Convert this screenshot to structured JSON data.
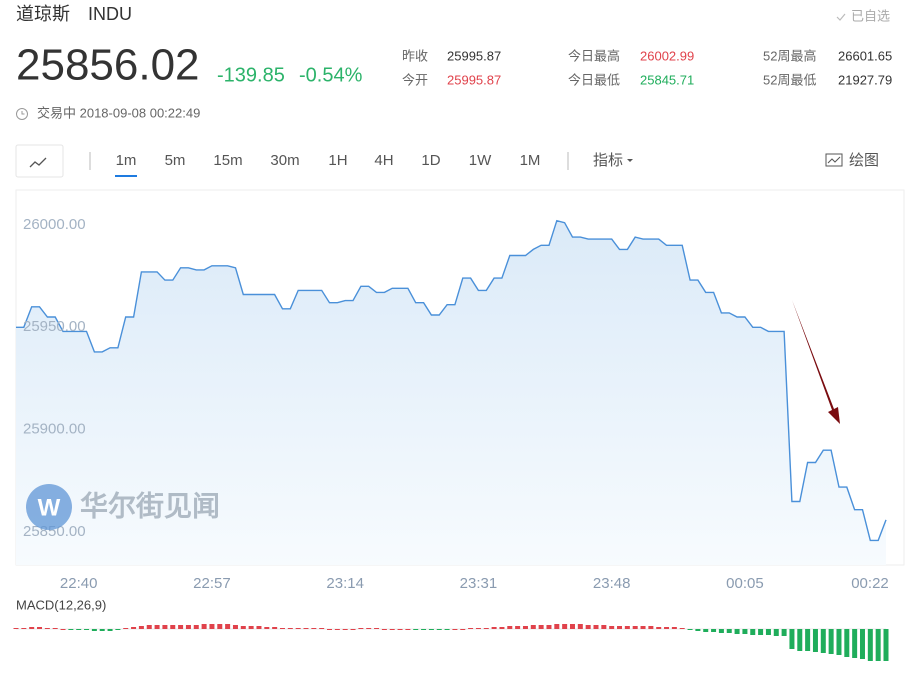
{
  "header": {
    "name": "道琼斯",
    "code": "INDU",
    "watch": "已自选",
    "price": "25856.02",
    "change": "-139.85",
    "change_pct": "-0.54%",
    "status": "交易中 2018-09-08 00:22:49",
    "stats": [
      {
        "label": "昨收",
        "value": "25995.87",
        "color": "#333333"
      },
      {
        "label": "今开",
        "value": "25995.87",
        "color": "#e0424b"
      },
      {
        "label": "今日最高",
        "value": "26002.99",
        "color": "#e0424b"
      },
      {
        "label": "今日最低",
        "value": "25845.71",
        "color": "#1fad5b"
      },
      {
        "label": "52周最高",
        "value": "26601.65",
        "color": "#333333"
      },
      {
        "label": "52周最低",
        "value": "21927.79",
        "color": "#333333"
      }
    ]
  },
  "toolbar": {
    "tabs": [
      "1m",
      "5m",
      "15m",
      "30m",
      "1H",
      "4H",
      "1D",
      "1W",
      "1M"
    ],
    "active": 0,
    "indicator": "指标",
    "draw": "绘图"
  },
  "watermark": "华尔街见闻",
  "chart_data": {
    "type": "line",
    "categories": [
      null,
      null,
      null,
      null,
      null,
      null,
      null,
      null,
      "22:40",
      null,
      null,
      null,
      null,
      null,
      null,
      null,
      null,
      null,
      null,
      null,
      null,
      null,
      null,
      null,
      null,
      "22:57",
      null,
      null,
      null,
      null,
      null,
      null,
      null,
      null,
      null,
      null,
      null,
      null,
      null,
      null,
      null,
      null,
      "23:14",
      null,
      null,
      null,
      null,
      null,
      null,
      null,
      null,
      null,
      null,
      null,
      null,
      null,
      null,
      null,
      null,
      "23:31",
      null,
      null,
      null,
      null,
      null,
      null,
      null,
      null,
      null,
      null,
      null,
      null,
      null,
      null,
      null,
      null,
      "23:48",
      null,
      null,
      null,
      null,
      null,
      null,
      null,
      null,
      null,
      null,
      null,
      null,
      null,
      null,
      null,
      null,
      "00:05",
      null,
      null,
      null,
      null,
      null,
      null,
      null,
      null,
      null,
      null,
      null,
      null,
      null,
      null,
      null,
      null,
      "00:22",
      null
    ],
    "series": [
      {
        "name": "INDU",
        "color": "#4a90d9",
        "values": [
          25950,
          25950,
          25960,
          25960,
          25955,
          25955,
          25948,
          25948,
          25948,
          25948,
          25938,
          25938,
          25940,
          25940,
          25955,
          25955,
          25977,
          25977,
          25977,
          25973,
          25973,
          25979,
          25979,
          25978,
          25978,
          25980,
          25980,
          25980,
          25979,
          25966,
          25966,
          25966,
          25966,
          25966,
          25959,
          25959,
          25968,
          25968,
          25968,
          25968,
          25962,
          25962,
          25963,
          25963,
          25970,
          25970,
          25967,
          25967,
          25969,
          25969,
          25969,
          25962,
          25962,
          25956,
          25956,
          25961,
          25961,
          25974,
          25974,
          25968,
          25968,
          25974,
          25974,
          25985,
          25985,
          25985,
          25988,
          25990,
          25990,
          26002,
          26001,
          25994,
          25994,
          25993,
          25993,
          25993,
          25993,
          25988,
          25988,
          25994,
          25993,
          25993,
          25993,
          25990,
          25990,
          25990,
          25973,
          25973,
          25967,
          25967,
          25957,
          25957,
          25955,
          25955,
          25950,
          25950,
          25948,
          25948,
          25948,
          25865,
          25865,
          25884,
          25884,
          25890,
          25890,
          25872,
          25872,
          25861,
          25861,
          25846,
          25846,
          25856.02
        ]
      }
    ],
    "ylim": [
      25834,
      26016
    ],
    "yticks": [
      {
        "value": 25850,
        "label": "25850.00"
      },
      {
        "value": 25900,
        "label": "25900.00"
      },
      {
        "value": 25950,
        "label": "25950.00"
      },
      {
        "value": 26000,
        "label": "26000.00"
      }
    ],
    "macd": {
      "label": "MACD(12,26,9)",
      "positive_color": "#e0424b",
      "negative_color": "#1fad5b",
      "ylim": [
        -36,
        14
      ],
      "values": [
        1,
        1,
        2,
        2,
        1,
        1,
        0,
        -1,
        -1,
        -1,
        -2,
        -2,
        -2,
        -1,
        1,
        2,
        3,
        4,
        4,
        4,
        4,
        4,
        4,
        4,
        5,
        5,
        5,
        5,
        4,
        3,
        3,
        3,
        2,
        2,
        1,
        1,
        1,
        1,
        1,
        1,
        0,
        0,
        0,
        0,
        1,
        1,
        1,
        0,
        0,
        0,
        0,
        -1,
        -1,
        -1,
        -1,
        -1,
        0,
        0,
        1,
        1,
        1,
        2,
        2,
        3,
        3,
        3,
        4,
        4,
        4,
        5,
        5,
        5,
        5,
        4,
        4,
        4,
        3,
        3,
        3,
        3,
        3,
        3,
        2,
        2,
        2,
        1,
        -1,
        -2,
        -3,
        -3,
        -4,
        -4,
        -5,
        -5,
        -6,
        -6,
        -6,
        -7,
        -7,
        -20,
        -22,
        -22,
        -23,
        -24,
        -25,
        -26,
        -28,
        -29,
        -30,
        -32,
        -32,
        -32
      ]
    }
  }
}
